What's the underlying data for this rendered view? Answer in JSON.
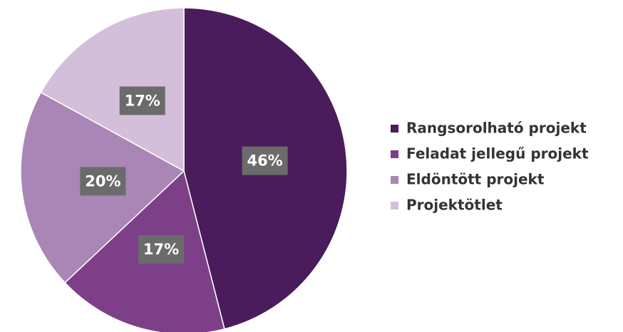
{
  "chart_data": {
    "type": "pie",
    "categories": [
      "Rangsorolható projekt",
      "Feladat jellegű projekt",
      "Eldöntött projekt",
      "Projektötlet"
    ],
    "values": [
      46,
      17,
      20,
      17
    ],
    "value_labels": [
      "46%",
      "17%",
      "20%",
      "17%"
    ],
    "colors": [
      "#4a1c5b",
      "#7d3f88",
      "#a986b5",
      "#d3bfd9"
    ],
    "legend": "right"
  }
}
